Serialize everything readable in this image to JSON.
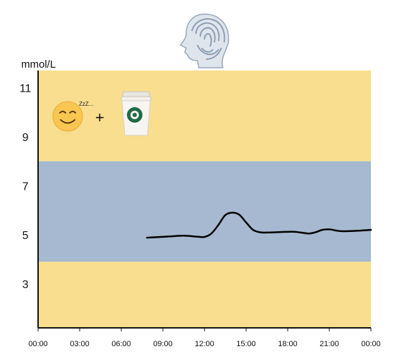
{
  "chart_data": {
    "type": "line",
    "title": "",
    "ylabel": "mmol/L",
    "xlabel": "",
    "x_ticks": [
      "00:00",
      "03:00",
      "06:00",
      "09:00",
      "12:00",
      "15:00",
      "18:00",
      "21:00",
      "00:00"
    ],
    "y_ticks": [
      3,
      5,
      7,
      9,
      11
    ],
    "xlim_hours": [
      0,
      24
    ],
    "ylim": [
      1.2,
      11.7
    ],
    "grid": false,
    "bands": [
      {
        "name": "low",
        "from": 1.2,
        "to": 3.9,
        "color": "#f8de8e"
      },
      {
        "name": "target",
        "from": 3.9,
        "to": 8.0,
        "color": "#a6b9d1"
      },
      {
        "name": "high",
        "from": 8.0,
        "to": 11.7,
        "color": "#f8de8e"
      }
    ],
    "line_color": "#000000",
    "series": [
      {
        "x": [
          7.85,
          8.5,
          9.5,
          10.5,
          11.5,
          12.0,
          12.5,
          13.0,
          13.5,
          14.0,
          14.5,
          15.0,
          15.5,
          16.0,
          16.5,
          17.5,
          18.5,
          19.5,
          20.0,
          20.5,
          21.0,
          21.5,
          22.0,
          23.0,
          24.0
        ],
        "y": [
          4.88,
          4.9,
          4.93,
          4.96,
          4.92,
          4.91,
          5.05,
          5.4,
          5.8,
          5.9,
          5.82,
          5.5,
          5.2,
          5.1,
          5.09,
          5.11,
          5.12,
          5.05,
          5.1,
          5.2,
          5.22,
          5.17,
          5.14,
          5.16,
          5.2
        ]
      }
    ]
  },
  "icons": [
    "fingerprint-head-icon",
    "sleeping-smiley-icon",
    "plus-icon",
    "coffee-cup-icon"
  ],
  "sleep_text": "ZzZ...",
  "plus_text": "+"
}
